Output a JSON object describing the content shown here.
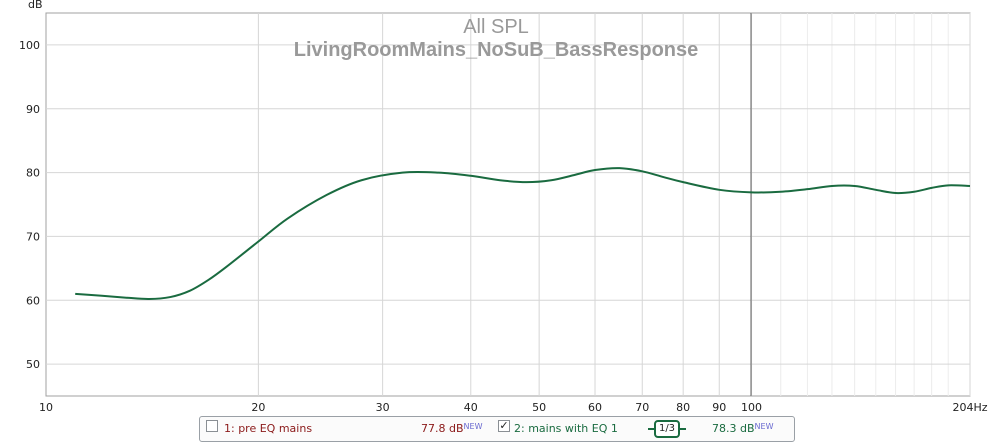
{
  "chart_data": {
    "type": "line",
    "title": "All SPL",
    "subtitle": "LivingRoomMains_NoSuB_BassResponse",
    "xlabel": "",
    "ylabel": "dB",
    "xscale": "log",
    "xlim": [
      10,
      204
    ],
    "ylim": [
      45,
      105
    ],
    "x_ticks": [
      "10",
      "20",
      "30",
      "40",
      "50",
      "60",
      "70",
      "80",
      "90",
      "100",
      "204Hz"
    ],
    "y_ticks": [
      "50",
      "60",
      "70",
      "80",
      "90",
      "100"
    ],
    "grid": true,
    "legend_position": "bottom",
    "series": [
      {
        "name": "2: mains with EQ 1",
        "color": "#1a6b40",
        "x": [
          11,
          12,
          13,
          14,
          15,
          16,
          17,
          18,
          20,
          22,
          25,
          28,
          32,
          36,
          40,
          44,
          48,
          52,
          56,
          60,
          65,
          70,
          75,
          80,
          90,
          100,
          110,
          120,
          130,
          140,
          150,
          160,
          170,
          180,
          190,
          204
        ],
        "y": [
          61.0,
          60.7,
          60.4,
          60.2,
          60.5,
          61.5,
          63.2,
          65.2,
          69.2,
          72.8,
          76.5,
          78.8,
          80.0,
          80.0,
          79.5,
          78.8,
          78.5,
          78.8,
          79.6,
          80.4,
          80.7,
          80.2,
          79.3,
          78.5,
          77.3,
          76.9,
          77.0,
          77.4,
          77.9,
          77.9,
          77.3,
          76.8,
          77.0,
          77.6,
          78.0,
          77.9
        ]
      }
    ]
  },
  "legend": {
    "item1": {
      "label": "1: pre EQ mains",
      "value": "77.8 dB",
      "tag": "NEW",
      "checked": false
    },
    "item2": {
      "label": "2: mains with EQ 1",
      "value": "78.3 dB",
      "tag": "NEW",
      "checked": true,
      "check_mark": "✓",
      "smoothing": "1/3"
    }
  }
}
